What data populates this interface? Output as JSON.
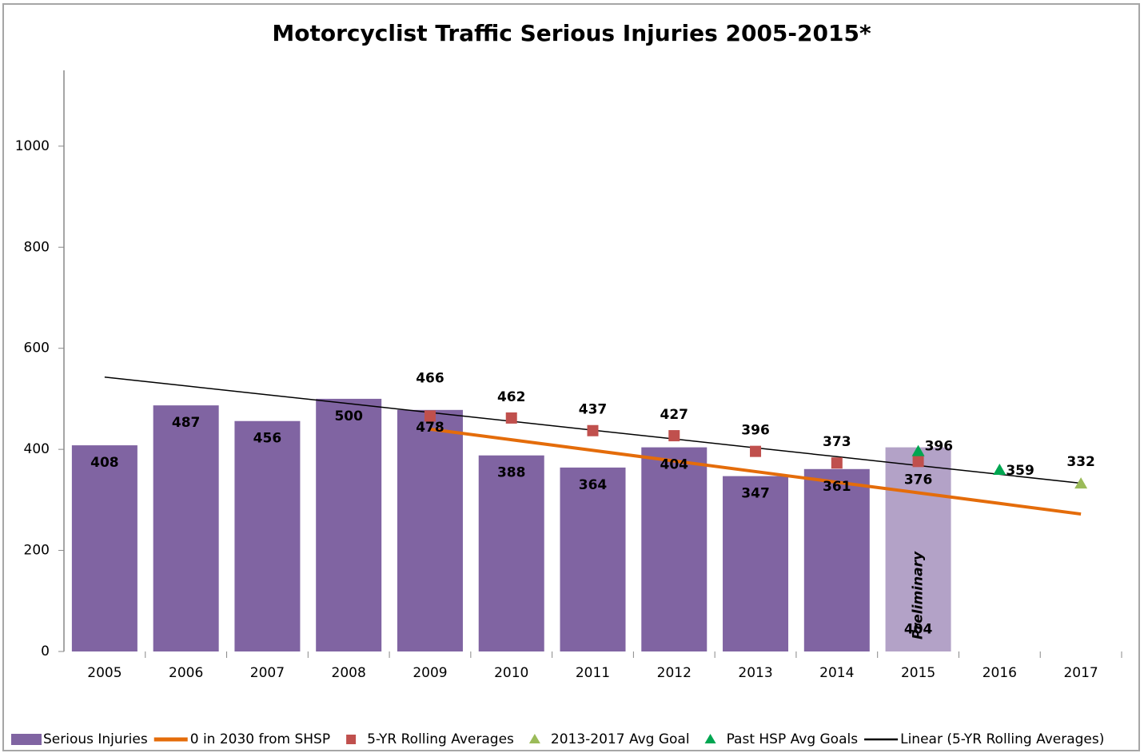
{
  "chart_data": {
    "type": "combo",
    "title": "Motorcyclist Traffic Serious Injuries 2005-2015*",
    "categories": [
      "2005",
      "2006",
      "2007",
      "2008",
      "2009",
      "2010",
      "2011",
      "2012",
      "2013",
      "2014",
      "2015",
      "2016",
      "2017"
    ],
    "ylim": [
      0,
      1150
    ],
    "yticks": [
      0,
      200,
      400,
      600,
      800,
      1000
    ],
    "grid": false,
    "legend": "bottom",
    "annotation": "Preliminary",
    "series": [
      {
        "name": "Serious Injuries",
        "type": "bar",
        "color": "#8064a2",
        "colors": [
          "#8064a2",
          "#8064a2",
          "#8064a2",
          "#8064a2",
          "#8064a2",
          "#8064a2",
          "#8064a2",
          "#8064a2",
          "#8064a2",
          "#8064a2",
          "#b3a2c7",
          null,
          null
        ],
        "values": [
          408,
          487,
          456,
          500,
          478,
          388,
          364,
          404,
          347,
          361,
          404,
          null,
          null
        ]
      },
      {
        "name": "0 in 2030 from SHSP",
        "type": "line",
        "color": "#e46c0a",
        "width": 4,
        "values": [
          null,
          null,
          null,
          null,
          440,
          419,
          398,
          377,
          356,
          335,
          314,
          293,
          272
        ]
      },
      {
        "name": "5-YR Rolling Averages",
        "type": "square",
        "color": "#c0504d",
        "values": [
          null,
          null,
          null,
          null,
          466,
          462,
          437,
          427,
          396,
          373,
          376,
          null,
          null
        ]
      },
      {
        "name": "2013-2017 Avg Goal",
        "type": "triangle",
        "color": "#9bbb59",
        "values": [
          null,
          null,
          null,
          null,
          null,
          null,
          null,
          null,
          null,
          null,
          null,
          null,
          332
        ]
      },
      {
        "name": "Past HSP Avg Goals",
        "type": "triangle",
        "color": "#00a651",
        "values": [
          null,
          null,
          null,
          null,
          null,
          null,
          null,
          null,
          null,
          null,
          396,
          359,
          null
        ]
      },
      {
        "name": "Linear (5-YR Rolling Averages)",
        "type": "line",
        "color": "#000000",
        "width": 1.5,
        "values": [
          543,
          525.5,
          508,
          490.5,
          473,
          455.5,
          438,
          420.5,
          403,
          385.5,
          368,
          350.5,
          333
        ]
      }
    ]
  }
}
